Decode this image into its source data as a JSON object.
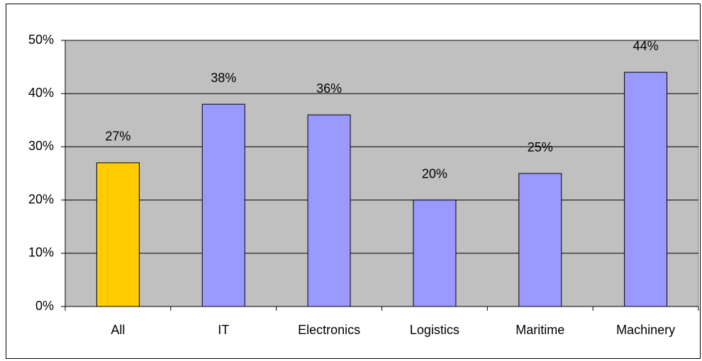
{
  "chart_data": {
    "type": "bar",
    "categories": [
      "All",
      "IT",
      "Electronics",
      "Logistics",
      "Maritime",
      "Machinery"
    ],
    "values": [
      27,
      38,
      36,
      20,
      25,
      44
    ],
    "value_labels": [
      "27%",
      "38%",
      "36%",
      "20%",
      "25%",
      "44%"
    ],
    "colors": [
      "#ffcc00",
      "#9999ff",
      "#9999ff",
      "#9999ff",
      "#9999ff",
      "#9999ff"
    ],
    "ylim": [
      0,
      50
    ],
    "yticks": [
      {
        "value": 0,
        "label": "0%"
      },
      {
        "value": 10,
        "label": "10%"
      },
      {
        "value": 20,
        "label": "20%"
      },
      {
        "value": 30,
        "label": "30%"
      },
      {
        "value": 40,
        "label": "40%"
      },
      {
        "value": 50,
        "label": "50%"
      }
    ],
    "grid": true
  }
}
